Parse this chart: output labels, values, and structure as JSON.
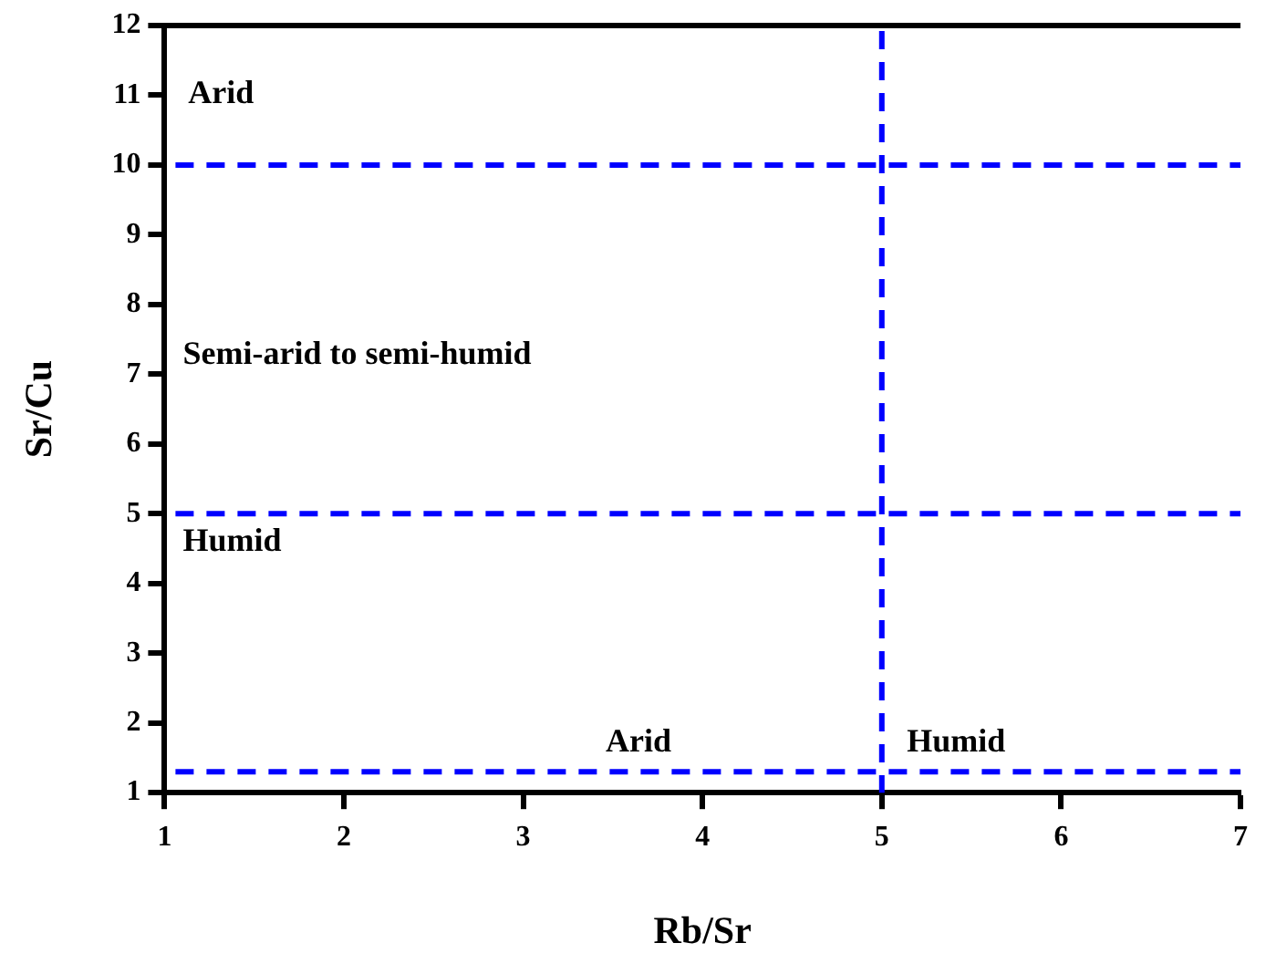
{
  "chart_data": {
    "type": "scatter",
    "xlabel": "Rb/Sr",
    "ylabel": "Sr/Cu",
    "xlim": [
      1,
      7
    ],
    "xticks": [
      1,
      2,
      3,
      4,
      5,
      6,
      7
    ],
    "ylim": [
      1,
      12
    ],
    "yticks": [
      1,
      2,
      3,
      4,
      5,
      6,
      7,
      8,
      9,
      10,
      11,
      12
    ],
    "grid": false,
    "legend": false,
    "ref_lines": [
      {
        "axis": "y",
        "value": 10,
        "color": "#0000ff",
        "line_style": "dashed"
      },
      {
        "axis": "y",
        "value": 5,
        "color": "#0000ff",
        "line_style": "dashed"
      },
      {
        "axis": "y",
        "value": 1.3,
        "color": "#0000ff",
        "line_style": "dashed"
      },
      {
        "axis": "x",
        "value": 5,
        "color": "#0000ff",
        "line_style": "dashed"
      }
    ],
    "annotations": [
      "Arid",
      "Semi-arid to semi-humid",
      "Humid",
      "Arid",
      "Humid"
    ]
  }
}
